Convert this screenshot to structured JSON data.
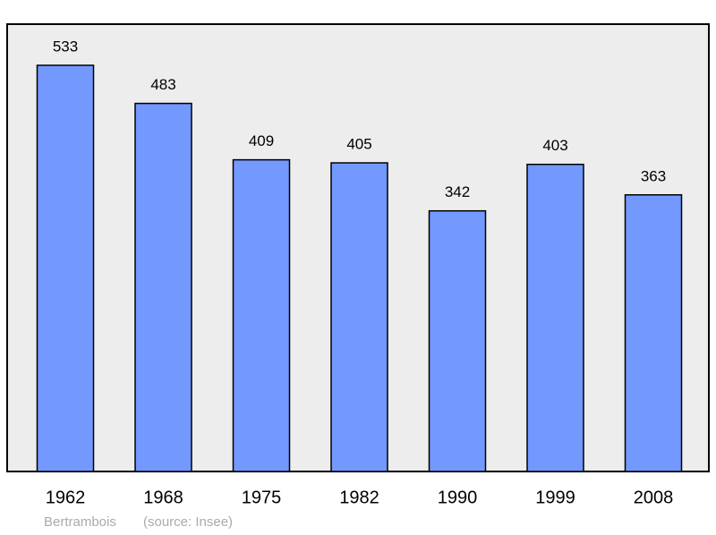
{
  "chart_data": {
    "type": "bar",
    "categories": [
      "1962",
      "1968",
      "1975",
      "1982",
      "1990",
      "1999",
      "2008"
    ],
    "values": [
      533,
      483,
      409,
      405,
      342,
      403,
      363
    ],
    "color": "#7399ff",
    "caption": "Bertrambois",
    "source": "(source: Insee)"
  }
}
